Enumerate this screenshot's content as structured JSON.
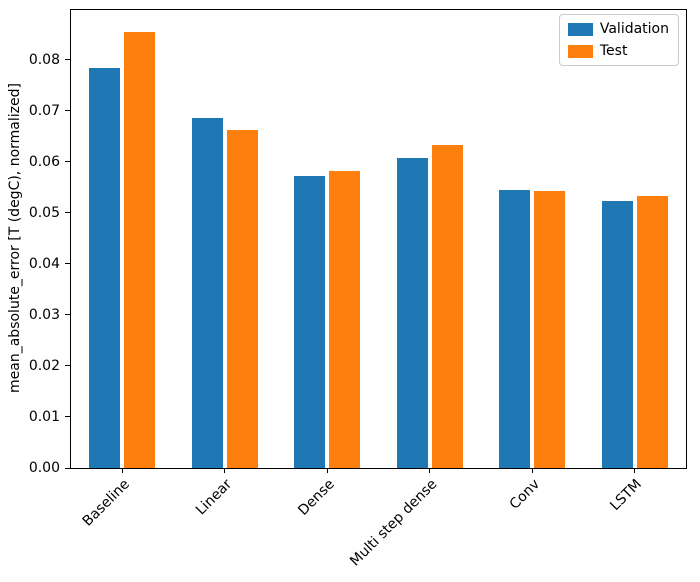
{
  "figure": {
    "background": "#ffffff"
  },
  "chart_data": {
    "type": "bar",
    "title": "",
    "xlabel": "",
    "ylabel": "mean_absolute_error [T (degC), normalized]",
    "categories": [
      "Baseline",
      "Linear",
      "Dense",
      "Multi step dense",
      "Conv",
      "LSTM"
    ],
    "series": [
      {
        "name": "Validation",
        "color": "#1f77b4",
        "values": [
          0.0785,
          0.0687,
          0.0572,
          0.0607,
          0.0545,
          0.0524
        ]
      },
      {
        "name": "Test",
        "color": "#ff7f0e",
        "values": [
          0.0855,
          0.0663,
          0.0583,
          0.0634,
          0.0543,
          0.0534
        ]
      }
    ],
    "ylim": [
      0,
      0.0898
    ],
    "yticks": [
      0.0,
      0.01,
      0.02,
      0.03,
      0.04,
      0.05,
      0.06,
      0.07,
      0.08
    ],
    "ytick_decimals": 2,
    "xtick_rotation_deg": 45,
    "bar_width_units": 0.3,
    "bar_offset_units": 0.17,
    "grid": false,
    "legend_position": "upper right"
  }
}
